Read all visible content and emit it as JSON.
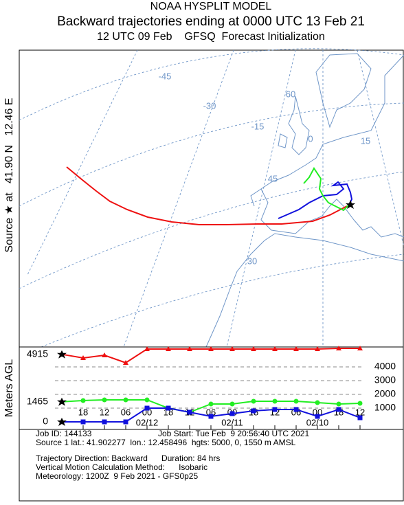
{
  "header": {
    "title": "NOAA HYSPLIT MODEL",
    "subtitle": "Backward trajectories ending at 0000 UTC 13 Feb 21",
    "info": "12 UTC 09 Feb    GFSQ  Forecast Initialization"
  },
  "map": {
    "source_label": "Source ★ at   41.90 N   12.46 E",
    "labels": [
      "-45",
      "-30",
      "-15",
      "0",
      "15",
      "60",
      "45",
      "30"
    ]
  },
  "chart_data": {
    "type": "line",
    "y_label": "Meters AGL",
    "x": [
      0,
      6,
      12,
      18,
      24,
      30,
      36,
      42,
      48,
      54,
      60,
      66,
      72,
      78,
      84
    ],
    "xlim": [
      0,
      84
    ],
    "xticks": [
      {
        "value": 6,
        "label": "18"
      },
      {
        "value": 12,
        "label": "12"
      },
      {
        "value": 18,
        "label": "06"
      },
      {
        "value": 24,
        "label": "00"
      },
      {
        "value": 30,
        "label": "18"
      },
      {
        "value": 36,
        "label": "12"
      },
      {
        "value": 42,
        "label": "06"
      },
      {
        "value": 48,
        "label": "00"
      },
      {
        "value": 54,
        "label": "18"
      },
      {
        "value": 60,
        "label": "12"
      },
      {
        "value": 66,
        "label": "06"
      },
      {
        "value": 72,
        "label": "00"
      },
      {
        "value": 78,
        "label": "18"
      },
      {
        "value": 84,
        "label": "12"
      }
    ],
    "day_labels": [
      {
        "value": 24,
        "label": "02/12"
      },
      {
        "value": 48,
        "label": "02/11"
      },
      {
        "value": 72,
        "label": "02/10"
      }
    ],
    "ylim": [
      -550,
      5450
    ],
    "yticks": [
      1000,
      2000,
      3000,
      4000
    ],
    "grid": true,
    "series": [
      {
        "color": "#ee1111",
        "values": [
          4915,
          4650,
          4850,
          4300,
          5300,
          5300,
          5300,
          5300,
          5300,
          5300,
          5300,
          5300,
          5300,
          5350,
          5350
        ]
      },
      {
        "color": "#22ee22",
        "values": [
          1465,
          1550,
          1600,
          1600,
          1600,
          1000,
          700,
          1300,
          1300,
          1500,
          1500,
          1500,
          1400,
          1300,
          1350
        ]
      },
      {
        "color": "#1111dd",
        "values": [
          0,
          0,
          0,
          0,
          1000,
          1000,
          700,
          400,
          600,
          800,
          900,
          900,
          400,
          900,
          300
        ]
      }
    ]
  },
  "footer": {
    "lines": [
      "Job ID: 144133",
      "Job Start: Tue Feb  9 20:56:40 UTC 2021",
      "Source 1 lat.: 41.902277  lon.: 12.458496  hgts: 5000, 0, 1550 m AMSL",
      "Trajectory Direction: Backward      Duration: 84 hrs",
      "Vertical Motion Calculation Method:      Isobaric",
      "Meteorology: 1200Z  9 Feb 2021 - GFS0p25"
    ]
  }
}
